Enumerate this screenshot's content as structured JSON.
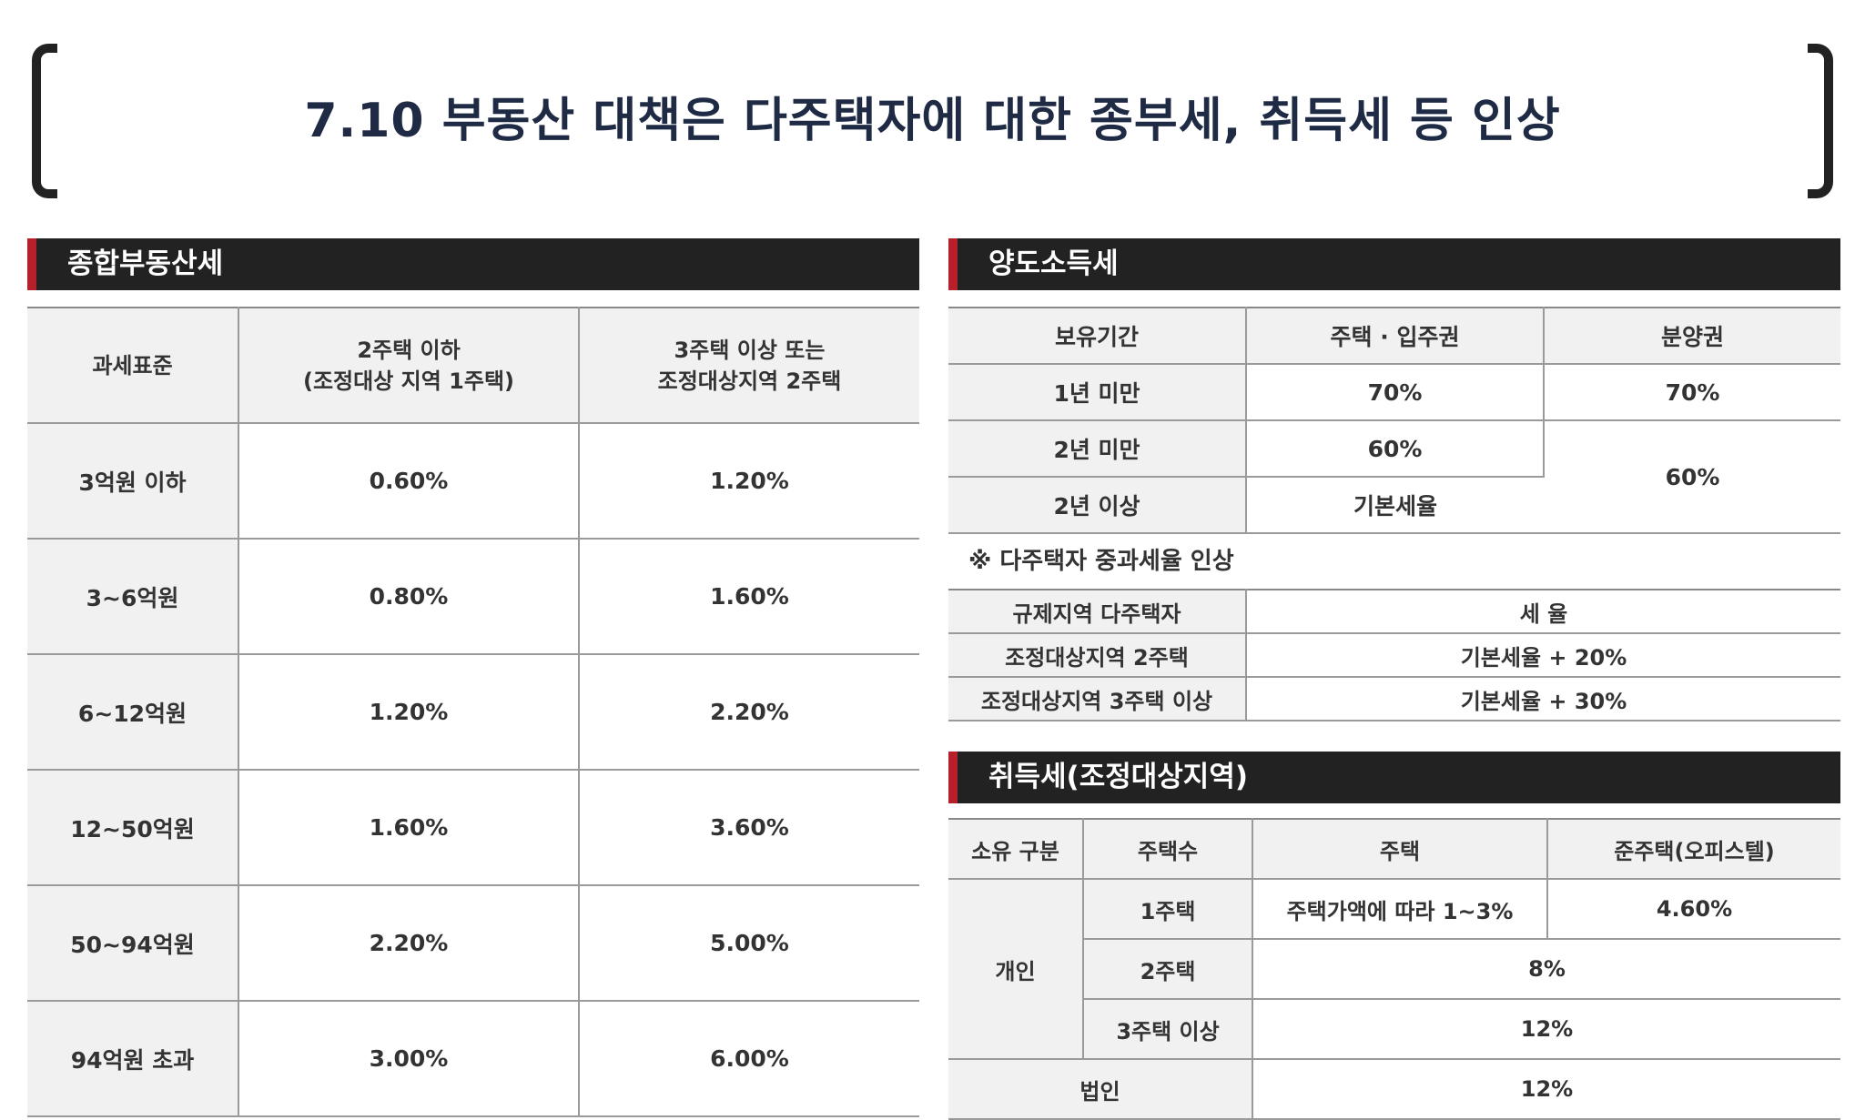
{
  "title": "7.10 부동산 대책은 다주택자에 대한 종부세, 취득세 등 인상",
  "comprehensive_tax": {
    "header": "종합부동산세",
    "col_headers": [
      "과세표준",
      "2주택 이하",
      "(조정대상 지역 1주택)",
      "3주택 이상 또는",
      "조정대상지역 2주택"
    ],
    "rows": [
      [
        "3억원 이하",
        "0.60%",
        "1.20%"
      ],
      [
        "3~6억원",
        "0.80%",
        "1.60%"
      ],
      [
        "6~12억원",
        "1.20%",
        "2.20%"
      ],
      [
        "12~50억원",
        "1.60%",
        "3.60%"
      ],
      [
        "50~94억원",
        "2.20%",
        "5.00%"
      ],
      [
        "94억원 초과",
        "3.00%",
        "6.00%"
      ]
    ]
  },
  "capital_gains": {
    "header": "양도소득세",
    "col_headers": [
      "보유기간",
      "주택 · 입주권",
      "분양권"
    ],
    "rows": [
      [
        "1년 미만",
        "70%",
        "70%"
      ],
      [
        "2년 미만",
        "60%",
        "60%"
      ],
      [
        "2년 이상",
        "기본세율"
      ]
    ],
    "note": "※ 다주택자 중과세율 인상",
    "multi": {
      "col_headers": [
        "규제지역 다주택자",
        "세 율"
      ],
      "rows": [
        [
          "조정대상지역 2주택",
          "기본세율 + 20%"
        ],
        [
          "조정대상지역 3주택 이상",
          "기본세율 + 30%"
        ]
      ]
    }
  },
  "acquisition_tax": {
    "header": "취득세(조정대상지역)",
    "col_headers": [
      "소유 구분",
      "주택수",
      "주택",
      "준주택(오피스텔)"
    ],
    "individual": "개인",
    "rows": [
      [
        "1주택",
        "주택가액에 따라 1~3%",
        "4.60%"
      ],
      [
        "2주택",
        "8%"
      ],
      [
        "3주택 이상",
        "12%"
      ]
    ],
    "corporate": [
      "법인",
      "12%"
    ]
  }
}
